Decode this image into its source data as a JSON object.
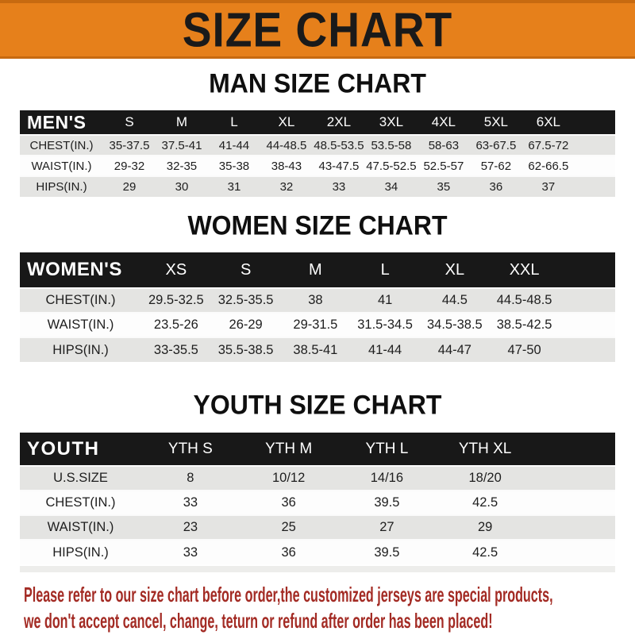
{
  "banner": {
    "title": "SIZE CHART"
  },
  "colors": {
    "banner_bg": "#E6801B",
    "banner_border": "#C76A10",
    "bar_bg": "#181818",
    "row_gray": "#E4E4E2",
    "footer_red": "#A32B24"
  },
  "sections": [
    {
      "heading": "MAN SIZE CHART",
      "header_label": "MEN'S",
      "columns": [
        "S",
        "M",
        "L",
        "XL",
        "2XL",
        "3XL",
        "4XL",
        "5XL",
        "6XL"
      ],
      "rows": [
        {
          "label": "CHEST(IN.)",
          "values": [
            "35-37.5",
            "37.5-41",
            "41-44",
            "44-48.5",
            "48.5-53.5",
            "53.5-58",
            "58-63",
            "63-67.5",
            "67.5-72"
          ]
        },
        {
          "label": "WAIST(IN.)",
          "values": [
            "29-32",
            "32-35",
            "35-38",
            "38-43",
            "43-47.5",
            "47.5-52.5",
            "52.5-57",
            "57-62",
            "62-66.5"
          ]
        },
        {
          "label": "HIPS(IN.)",
          "values": [
            "29",
            "30",
            "31",
            "32",
            "33",
            "34",
            "35",
            "36",
            "37"
          ]
        }
      ]
    },
    {
      "heading": "WOMEN SIZE CHART",
      "header_label": "WOMEN'S",
      "columns": [
        "XS",
        "S",
        "M",
        "L",
        "XL",
        "XXL"
      ],
      "rows": [
        {
          "label": "CHEST(IN.)",
          "values": [
            "29.5-32.5",
            "32.5-35.5",
            "38",
            "41",
            "44.5",
            "44.5-48.5"
          ]
        },
        {
          "label": "WAIST(IN.)",
          "values": [
            "23.5-26",
            "26-29",
            "29-31.5",
            "31.5-34.5",
            "34.5-38.5",
            "38.5-42.5"
          ]
        },
        {
          "label": "HIPS(IN.)",
          "values": [
            "33-35.5",
            "35.5-38.5",
            "38.5-41",
            "41-44",
            "44-47",
            "47-50"
          ]
        }
      ]
    },
    {
      "heading": "YOUTH SIZE CHART",
      "header_label": "YOUTH",
      "columns": [
        "YTH S",
        "YTH M",
        "YTH L",
        "YTH XL"
      ],
      "rows": [
        {
          "label": "U.S.SIZE",
          "values": [
            "8",
            "10/12",
            "14/16",
            "18/20"
          ]
        },
        {
          "label": "CHEST(IN.)",
          "values": [
            "33",
            "36",
            "39.5",
            "42.5"
          ]
        },
        {
          "label": "WAIST(IN.)",
          "values": [
            "23",
            "25",
            "27",
            "29"
          ]
        },
        {
          "label": "HIPS(IN.)",
          "values": [
            "33",
            "36",
            "39.5",
            "42.5"
          ]
        }
      ]
    }
  ],
  "footer": {
    "line1": "Please refer to our size chart before order,the customized jerseys are special products,",
    "line2": "we don't accept cancel, change, teturn or refund after order has been placed!"
  }
}
